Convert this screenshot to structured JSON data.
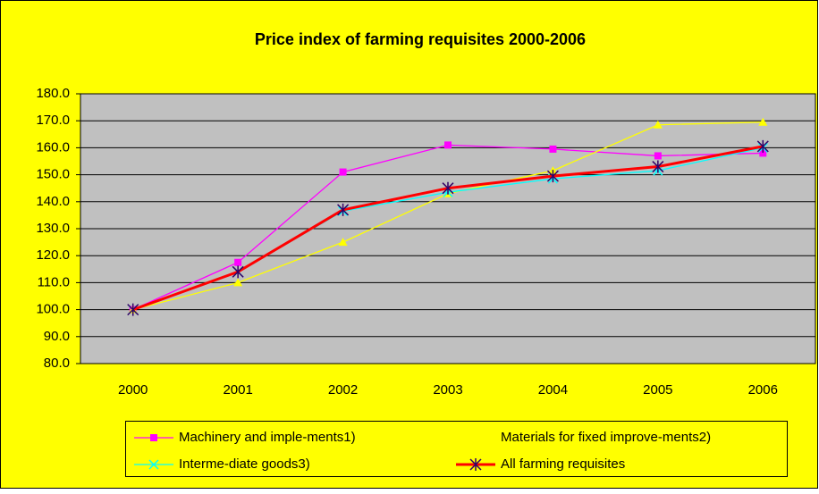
{
  "chart_data": {
    "type": "line",
    "title": "Price index of farming requisites 2000-2006",
    "categories": [
      "2000",
      "2001",
      "2002",
      "2003",
      "2004",
      "2005",
      "2006"
    ],
    "series": [
      {
        "name": "Machinery and imple-ments1)",
        "color": "#ff00ff",
        "marker": "square",
        "values": [
          100,
          117.5,
          151,
          161,
          159.5,
          157,
          158
        ]
      },
      {
        "name": "Materials for fixed improve-ments2)",
        "color": "#ffff00",
        "marker": "triangle",
        "values": [
          100,
          110,
          125,
          143,
          151.5,
          168.5,
          169.5
        ]
      },
      {
        "name": "Interme-diate goods3)",
        "color": "#00ffff",
        "marker": "x",
        "values": [
          100,
          114,
          136.5,
          143.5,
          148.5,
          151.5,
          160
        ]
      },
      {
        "name": "All farming requisites",
        "color": "#ff0000",
        "marker": "star",
        "values": [
          100,
          114,
          137,
          145,
          149.5,
          153,
          160.5
        ]
      }
    ],
    "ylim": [
      80,
      180
    ],
    "yticks": [
      {
        "value": 80,
        "label": "80.0"
      },
      {
        "value": 90,
        "label": "90.0"
      },
      {
        "value": 100,
        "label": "100.0"
      },
      {
        "value": 110,
        "label": "110.0"
      },
      {
        "value": 120,
        "label": "120.0"
      },
      {
        "value": 130,
        "label": "130.0"
      },
      {
        "value": 140,
        "label": "140.0"
      },
      {
        "value": 150,
        "label": "150.0"
      },
      {
        "value": 160,
        "label": "160.0"
      },
      {
        "value": 170,
        "label": "170.0"
      },
      {
        "value": 180,
        "label": "180.0"
      }
    ],
    "grid": true
  }
}
